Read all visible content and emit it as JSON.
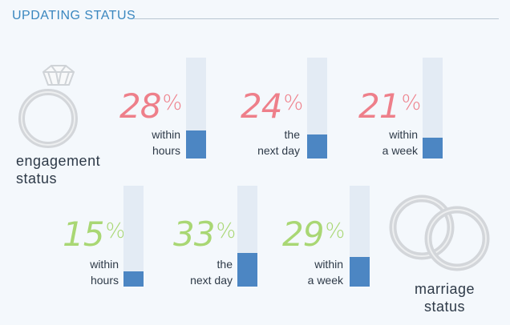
{
  "header": {
    "title": "UPDATING STATUS"
  },
  "engagement": {
    "label_line1": "engagement",
    "label_line2": "status",
    "icon": "engagement-ring-icon",
    "color": "#ee7f8a",
    "items": [
      {
        "pct": "28",
        "cap1": "within",
        "cap2": "hours",
        "fraction": 0.28
      },
      {
        "pct": "24",
        "cap1": "the",
        "cap2": "next day",
        "fraction": 0.24
      },
      {
        "pct": "21",
        "cap1": "within",
        "cap2": "a week",
        "fraction": 0.21
      }
    ]
  },
  "marriage": {
    "label_line1": "marriage",
    "label_line2": "status",
    "icon": "wedding-rings-icon",
    "color": "#a9d774",
    "items": [
      {
        "pct": "15",
        "cap1": "within",
        "cap2": "hours",
        "fraction": 0.15
      },
      {
        "pct": "33",
        "cap1": "the",
        "cap2": "next day",
        "fraction": 0.33
      },
      {
        "pct": "29",
        "cap1": "within",
        "cap2": "a week",
        "fraction": 0.29
      }
    ]
  },
  "symbols": {
    "percent": "%"
  },
  "colors": {
    "accent": "#3a87bf",
    "bar_fill": "#4c86c3",
    "bar_track": "#e3ebf4"
  }
}
